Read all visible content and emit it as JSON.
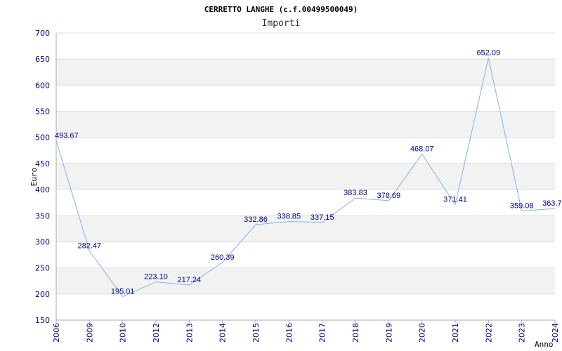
{
  "chart_data": {
    "type": "line",
    "title": "CERRETTO LANGHE (c.f.00499500049)",
    "subtitle": "Importi",
    "ylabel": "Euro",
    "xlabel": "Anno",
    "categories": [
      "2006",
      "2009",
      "2010",
      "2012",
      "2013",
      "2014",
      "2015",
      "2016",
      "2017",
      "2018",
      "2019",
      "2020",
      "2021",
      "2022",
      "2023",
      "2024"
    ],
    "series": [
      {
        "values": [
          493.67,
          282.47,
          195.01,
          223.1,
          217.24,
          260.39,
          332.86,
          338.85,
          337.15,
          383.83,
          378.69,
          468.07,
          371.41,
          652.09,
          359.08,
          363.7
        ],
        "labels": [
          "493.67",
          "282.47",
          "195.01",
          "223.10",
          "217.24",
          "260.39",
          "332.86",
          "338.85",
          "337.15",
          "383.83",
          "378.69",
          "468.07",
          "371.41",
          "652.09",
          "359.08",
          "363.7"
        ]
      }
    ],
    "ylim": [
      150,
      700
    ],
    "yticks": [
      150,
      200,
      250,
      300,
      350,
      400,
      450,
      500,
      550,
      600,
      650,
      700
    ],
    "grid": true,
    "line_color": "#7fb2e5",
    "band_color": "#f2f2f2",
    "grid_color": "#dddddd"
  }
}
